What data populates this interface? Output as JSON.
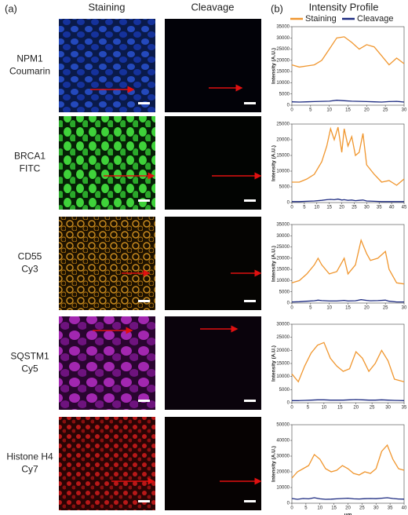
{
  "figure": {
    "panel_labels": [
      "(a)",
      "(b)"
    ],
    "columns": [
      "Staining",
      "Cleavage"
    ],
    "profile_title": "Intensity Profile",
    "rows": [
      {
        "protein": "NPM1",
        "dye": "Coumarin"
      },
      {
        "protein": "BRCA1",
        "dye": "FITC"
      },
      {
        "protein": "CD55",
        "dye": "Cy3"
      },
      {
        "protein": "SQSTM1",
        "dye": "Cy5"
      },
      {
        "protein": "Histone H4",
        "dye": "Cy7"
      }
    ]
  },
  "chart_data": [
    {
      "type": "line",
      "ylabel": "Intensity (A.U.)",
      "xlim": [
        0,
        30
      ],
      "xticks": [
        0,
        5,
        10,
        15,
        20,
        25,
        30
      ],
      "ylim": [
        0,
        35000
      ],
      "yticks": [
        0,
        5000,
        10000,
        15000,
        20000,
        25000,
        30000,
        35000
      ],
      "x": [
        0,
        2,
        4,
        6,
        8,
        10,
        12,
        14,
        16,
        18,
        20,
        22,
        24,
        26,
        28,
        30
      ],
      "series": [
        {
          "name": "Staining",
          "color": "#f0962e",
          "values": [
            18000,
            17000,
            17500,
            18000,
            20000,
            25000,
            30000,
            30500,
            28000,
            25000,
            27000,
            26000,
            22000,
            18000,
            21000,
            18500
          ]
        },
        {
          "name": "Cleavage",
          "color": "#1c2a80",
          "values": [
            1500,
            1400,
            1500,
            1600,
            1700,
            1800,
            2200,
            2000,
            1800,
            1700,
            1600,
            1500,
            1400,
            1600,
            1700,
            1400
          ]
        }
      ]
    },
    {
      "type": "line",
      "ylabel": "Intensity (A.U.)",
      "xlim": [
        0,
        45
      ],
      "xticks": [
        0,
        5,
        10,
        15,
        20,
        25,
        30,
        35,
        40,
        45
      ],
      "ylim": [
        0,
        25000
      ],
      "yticks": [
        0,
        5000,
        10000,
        15000,
        20000,
        25000
      ],
      "x": [
        0,
        3,
        6,
        9,
        12,
        14,
        15.5,
        17,
        18.5,
        20,
        21,
        22.5,
        24,
        25.5,
        27,
        28.5,
        30,
        33,
        36,
        39,
        42,
        45
      ],
      "series": [
        {
          "color": "#f0962e",
          "values": [
            6500,
            6500,
            7500,
            9000,
            13000,
            18000,
            23500,
            20000,
            24000,
            16000,
            23500,
            18000,
            21000,
            15000,
            16000,
            22000,
            12000,
            9000,
            6500,
            7000,
            5500,
            7500
          ]
        },
        {
          "color": "#1c2a80",
          "values": [
            300,
            300,
            400,
            500,
            700,
            900,
            1000,
            900,
            1100,
            800,
            900,
            700,
            800,
            600,
            700,
            800,
            500,
            400,
            300,
            300,
            300,
            300
          ]
        }
      ]
    },
    {
      "type": "line",
      "ylabel": "Intensity (A.U.)",
      "xlim": [
        0,
        30
      ],
      "xticks": [
        0,
        5,
        10,
        15,
        20,
        25,
        30
      ],
      "ylim": [
        0,
        35000
      ],
      "yticks": [
        0,
        5000,
        10000,
        15000,
        20000,
        25000,
        30000,
        35000
      ],
      "x": [
        0,
        2,
        4,
        6,
        7,
        8,
        10,
        12,
        14,
        15,
        17,
        18.5,
        20,
        21,
        23,
        25,
        26,
        28,
        30
      ],
      "series": [
        {
          "color": "#f0962e",
          "values": [
            9000,
            10000,
            13000,
            17000,
            20000,
            17000,
            13000,
            14000,
            20000,
            13000,
            17000,
            28000,
            22000,
            19000,
            20000,
            23000,
            15000,
            9000,
            8500
          ]
        },
        {
          "color": "#1c2a80",
          "values": [
            500,
            600,
            800,
            1000,
            1300,
            1100,
            900,
            900,
            1200,
            900,
            1000,
            1500,
            1200,
            1000,
            1100,
            1300,
            800,
            500,
            500
          ]
        }
      ]
    },
    {
      "type": "line",
      "ylabel": "Intensity (A.U.)",
      "xlim": [
        0,
        35
      ],
      "xticks": [
        0,
        5,
        10,
        15,
        20,
        25,
        30,
        35
      ],
      "ylim": [
        0,
        30000
      ],
      "yticks": [
        0,
        5000,
        10000,
        15000,
        20000,
        25000,
        30000
      ],
      "x": [
        0,
        2,
        4,
        6,
        8,
        10,
        12,
        14,
        16,
        18,
        20,
        22,
        24,
        26,
        28,
        30,
        32,
        35
      ],
      "series": [
        {
          "color": "#f0962e",
          "values": [
            11000,
            8000,
            14000,
            19000,
            22000,
            23000,
            17000,
            14000,
            12000,
            13000,
            19500,
            17000,
            12000,
            15000,
            20000,
            16000,
            9000,
            8000
          ]
        },
        {
          "color": "#1c2a80",
          "values": [
            800,
            800,
            900,
            1000,
            1100,
            1100,
            1000,
            1000,
            1000,
            1100,
            1200,
            1100,
            1000,
            1000,
            1100,
            1000,
            900,
            800
          ]
        }
      ]
    },
    {
      "type": "line",
      "ylabel": "Intensity (A.U.)",
      "xlabel": "μm",
      "xlim": [
        0,
        40
      ],
      "xticks": [
        0,
        5,
        10,
        15,
        20,
        25,
        30,
        35,
        40
      ],
      "ylim": [
        0,
        50000
      ],
      "yticks": [
        0,
        10000,
        20000,
        30000,
        40000,
        50000
      ],
      "x": [
        0,
        2,
        4,
        6,
        8,
        10,
        12,
        14,
        16,
        18,
        20,
        22,
        24,
        26,
        28,
        30,
        32,
        34,
        36,
        38,
        40
      ],
      "series": [
        {
          "color": "#f0962e",
          "values": [
            16000,
            20000,
            22000,
            24000,
            31000,
            28000,
            22000,
            20000,
            21000,
            24000,
            22000,
            19000,
            18000,
            20000,
            19000,
            22000,
            33000,
            37000,
            28000,
            22000,
            21000
          ]
        },
        {
          "color": "#1c2a80",
          "values": [
            3000,
            2500,
            3000,
            2800,
            3500,
            2800,
            2500,
            2600,
            2800,
            3000,
            3200,
            2800,
            2700,
            2900,
            3000,
            2900,
            3200,
            3500,
            3000,
            2700,
            2600
          ]
        }
      ]
    }
  ]
}
